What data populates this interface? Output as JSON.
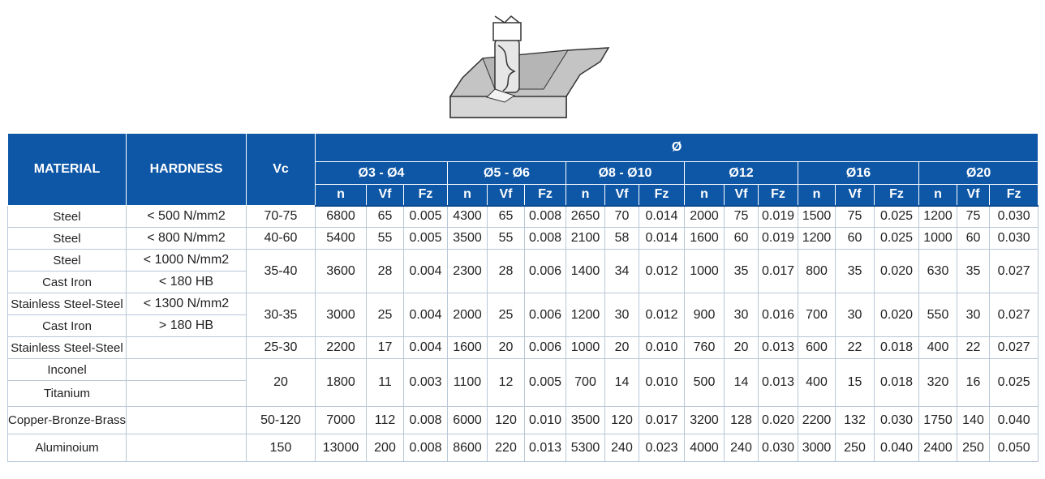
{
  "illustration": {
    "name": "end-mill-cutting-workpiece"
  },
  "colors": {
    "header_bg": "#0e57a6",
    "header_text": "#ffffff",
    "grid": "#b9c7d8"
  },
  "table": {
    "h_material": "MATERIAL",
    "h_hardness": "HARDNESS",
    "h_vc": "Vc",
    "h_diameter": "Ø",
    "groups": [
      "Ø3 - Ø4",
      "Ø5 - Ø6",
      "Ø8 - Ø10",
      "Ø12",
      "Ø16",
      "Ø20"
    ],
    "sub": {
      "n": "n",
      "vf": "Vf",
      "fz": "Fz"
    },
    "rows": {
      "steel1": {
        "material": "Steel",
        "hardness": "< 500 N/mm2",
        "vc": "70-75",
        "v": [
          "6800",
          "65",
          "0.005",
          "4300",
          "65",
          "0.008",
          "2650",
          "70",
          "0.014",
          "2000",
          "75",
          "0.019",
          "1500",
          "75",
          "0.025",
          "1200",
          "75",
          "0.030"
        ]
      },
      "steel2": {
        "material": "Steel",
        "hardness": "< 800 N/mm2",
        "vc": "40-60",
        "v": [
          "5400",
          "55",
          "0.005",
          "3500",
          "55",
          "0.008",
          "2100",
          "58",
          "0.014",
          "1600",
          "60",
          "0.019",
          "1200",
          "60",
          "0.025",
          "1000",
          "60",
          "0.030"
        ]
      },
      "steel3": {
        "material": "Steel",
        "hardness": "< 1000 N/mm2",
        "material_b": "Cast Iron",
        "hardness_b": "< 180 HB",
        "vc": "35-40",
        "v": [
          "3600",
          "28",
          "0.004",
          "2300",
          "28",
          "0.006",
          "1400",
          "34",
          "0.012",
          "1000",
          "35",
          "0.017",
          "800",
          "35",
          "0.020",
          "630",
          "35",
          "0.027"
        ]
      },
      "stainless1": {
        "material": "Stainless Steel-Steel",
        "hardness": "< 1300 N/mm2",
        "material_b": "Cast Iron",
        "hardness_b": "> 180 HB",
        "vc": "30-35",
        "v": [
          "3000",
          "25",
          "0.004",
          "2000",
          "25",
          "0.006",
          "1200",
          "30",
          "0.012",
          "900",
          "30",
          "0.016",
          "700",
          "30",
          "0.020",
          "550",
          "30",
          "0.027"
        ]
      },
      "stainless2": {
        "material": "Stainless Steel-Steel",
        "hardness": "",
        "vc": "25-30",
        "v": [
          "2200",
          "17",
          "0.004",
          "1600",
          "20",
          "0.006",
          "1000",
          "20",
          "0.010",
          "760",
          "20",
          "0.013",
          "600",
          "22",
          "0.018",
          "400",
          "22",
          "0.027"
        ]
      },
      "inconel": {
        "material": "Inconel",
        "material_b": "Titanium",
        "vc": "20",
        "v": [
          "1800",
          "11",
          "0.003",
          "1100",
          "12",
          "0.005",
          "700",
          "14",
          "0.010",
          "500",
          "14",
          "0.013",
          "400",
          "15",
          "0.018",
          "320",
          "16",
          "0.025"
        ]
      },
      "copper": {
        "material": "Copper-Bronze-Brass",
        "vc": "50-120",
        "v": [
          "7000",
          "112",
          "0.008",
          "6000",
          "120",
          "0.010",
          "3500",
          "120",
          "0.017",
          "3200",
          "128",
          "0.020",
          "2200",
          "132",
          "0.030",
          "1750",
          "140",
          "0.040"
        ]
      },
      "alu": {
        "material": "Aluminoium",
        "vc": "150",
        "v": [
          "13000",
          "200",
          "0.008",
          "8600",
          "220",
          "0.013",
          "5300",
          "240",
          "0.023",
          "4000",
          "240",
          "0.030",
          "3000",
          "250",
          "0.040",
          "2400",
          "250",
          "0.050"
        ]
      }
    }
  }
}
